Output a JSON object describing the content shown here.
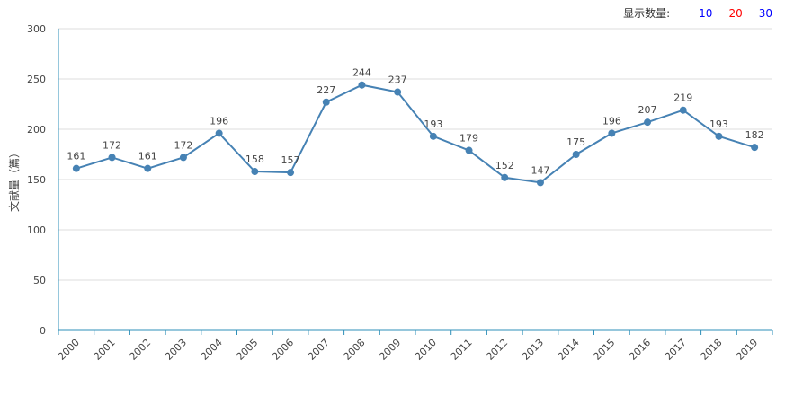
{
  "controls": {
    "label": "显示数量:",
    "options": [
      {
        "text": "10",
        "color": "#0000ff"
      },
      {
        "text": "20",
        "color": "#ff0000"
      },
      {
        "text": "30",
        "color": "#0000ff"
      }
    ]
  },
  "chart_data": {
    "type": "line",
    "title": "",
    "xlabel": "",
    "ylabel": "文献量（篇）",
    "ylim": [
      0,
      300
    ],
    "yticks": [
      0,
      50,
      100,
      150,
      200,
      250,
      300
    ],
    "categories": [
      "2000",
      "2001",
      "2002",
      "2003",
      "2004",
      "2005",
      "2006",
      "2007",
      "2008",
      "2009",
      "2010",
      "2011",
      "2012",
      "2013",
      "2014",
      "2015",
      "2016",
      "2017",
      "2018",
      "2019"
    ],
    "series": [
      {
        "values": [
          161,
          172,
          161,
          172,
          196,
          158,
          157,
          227,
          244,
          237,
          193,
          179,
          152,
          147,
          175,
          196,
          207,
          219,
          193,
          182
        ]
      }
    ],
    "line_color": "#4682b4",
    "axis_color": "#2e8fb8",
    "grid": true
  }
}
